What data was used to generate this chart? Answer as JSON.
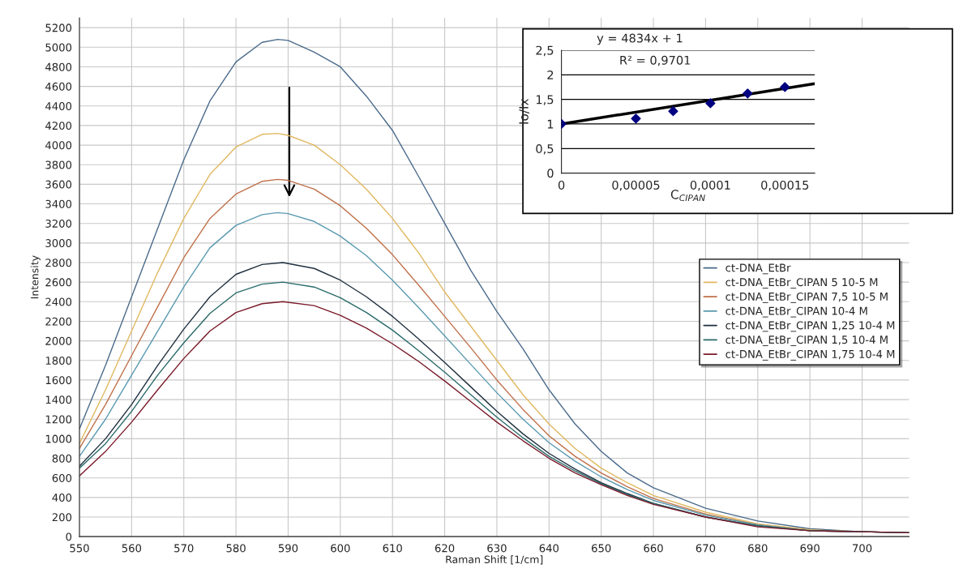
{
  "chart_data": [
    {
      "type": "line",
      "xlabel": "Raman Shift [1/cm]",
      "ylabel": "Intensity",
      "xlim": [
        550,
        709
      ],
      "xticks": [
        550,
        560,
        570,
        580,
        590,
        600,
        610,
        620,
        630,
        640,
        650,
        660,
        670,
        680,
        690,
        700
      ],
      "ylim": [
        0,
        5300
      ],
      "yticks": [
        0,
        200,
        400,
        600,
        800,
        1000,
        1200,
        1400,
        1600,
        1800,
        2000,
        2200,
        2400,
        2600,
        2800,
        3000,
        3200,
        3400,
        3600,
        3800,
        4000,
        4200,
        4400,
        4600,
        4800,
        5000,
        5200
      ],
      "grid": true,
      "legend": "right",
      "line_style": "solid",
      "series": [
        {
          "name": "ct-DNA_EtBr",
          "color": "#4a6a8a",
          "x": [
            550,
            555,
            560,
            565,
            570,
            575,
            580,
            585,
            588,
            590,
            595,
            600,
            605,
            610,
            615,
            620,
            625,
            630,
            635,
            640,
            645,
            650,
            655,
            660,
            670,
            680,
            690,
            700,
            709
          ],
          "values": [
            1100,
            1750,
            2450,
            3150,
            3850,
            4450,
            4850,
            5050,
            5080,
            5070,
            4950,
            4800,
            4500,
            4150,
            3680,
            3200,
            2720,
            2300,
            1920,
            1500,
            1150,
            870,
            650,
            500,
            290,
            160,
            80,
            50,
            40
          ]
        },
        {
          "name": "ct-DNA_EtBr_CIPAN 5 10-5 M",
          "color": "#e0b860",
          "x": [
            550,
            555,
            560,
            565,
            570,
            575,
            580,
            585,
            588,
            590,
            595,
            600,
            605,
            610,
            615,
            620,
            625,
            630,
            635,
            640,
            645,
            650,
            655,
            660,
            670,
            680,
            690,
            700,
            709
          ],
          "values": [
            950,
            1500,
            2100,
            2700,
            3250,
            3700,
            3980,
            4110,
            4120,
            4100,
            4000,
            3800,
            3550,
            3250,
            2900,
            2500,
            2150,
            1800,
            1450,
            1150,
            900,
            700,
            550,
            420,
            250,
            130,
            70,
            50,
            40
          ]
        },
        {
          "name": "ct-DNA_EtBr_CIPAN 7,5 10-5 M",
          "color": "#c0704a",
          "x": [
            550,
            555,
            560,
            565,
            570,
            575,
            580,
            585,
            588,
            590,
            595,
            600,
            605,
            610,
            615,
            620,
            625,
            630,
            635,
            640,
            645,
            650,
            655,
            660,
            670,
            680,
            690,
            700,
            709
          ],
          "values": [
            900,
            1350,
            1850,
            2350,
            2850,
            3250,
            3500,
            3630,
            3650,
            3640,
            3550,
            3380,
            3150,
            2880,
            2570,
            2250,
            1930,
            1600,
            1300,
            1030,
            820,
            650,
            510,
            390,
            230,
            120,
            60,
            50,
            40
          ]
        },
        {
          "name": "ct-DNA_EtBr_CIPAN 10-4 M",
          "color": "#5a9ab0",
          "x": [
            550,
            555,
            560,
            565,
            570,
            575,
            580,
            585,
            588,
            590,
            595,
            600,
            605,
            610,
            615,
            620,
            625,
            630,
            635,
            640,
            645,
            650,
            655,
            660,
            670,
            680,
            690,
            700,
            709
          ],
          "values": [
            820,
            1200,
            1650,
            2100,
            2550,
            2950,
            3180,
            3290,
            3310,
            3300,
            3220,
            3070,
            2870,
            2620,
            2340,
            2050,
            1760,
            1470,
            1200,
            960,
            770,
            610,
            480,
            370,
            220,
            120,
            60,
            50,
            40
          ]
        },
        {
          "name": "ct-DNA_EtBr_CIPAN 1,25 10-4 M",
          "color": "#1f2f3f",
          "x": [
            550,
            555,
            560,
            565,
            570,
            575,
            580,
            585,
            589,
            595,
            600,
            605,
            610,
            615,
            620,
            625,
            630,
            635,
            640,
            645,
            650,
            655,
            660,
            670,
            680,
            690,
            700,
            709
          ],
          "values": [
            720,
            1000,
            1350,
            1750,
            2120,
            2450,
            2680,
            2780,
            2800,
            2740,
            2620,
            2450,
            2250,
            2020,
            1780,
            1530,
            1280,
            1050,
            850,
            690,
            550,
            440,
            340,
            200,
            110,
            60,
            50,
            40
          ]
        },
        {
          "name": "ct-DNA_EtBr_CIPAN 1,5 10-4 M",
          "color": "#2a6a6a",
          "x": [
            550,
            555,
            560,
            565,
            570,
            575,
            580,
            585,
            589,
            595,
            600,
            605,
            610,
            615,
            620,
            625,
            630,
            635,
            640,
            645,
            650,
            655,
            660,
            670,
            680,
            690,
            700,
            709
          ],
          "values": [
            700,
            950,
            1280,
            1650,
            1980,
            2280,
            2490,
            2580,
            2600,
            2550,
            2440,
            2290,
            2110,
            1900,
            1680,
            1450,
            1220,
            1010,
            820,
            670,
            540,
            430,
            340,
            200,
            110,
            60,
            50,
            40
          ]
        },
        {
          "name": "ct-DNA_EtBr_CIPAN 1,75 10-4 M",
          "color": "#7a1a2a",
          "x": [
            550,
            555,
            560,
            565,
            570,
            575,
            580,
            585,
            589,
            595,
            600,
            605,
            610,
            615,
            620,
            625,
            630,
            635,
            640,
            645,
            650,
            655,
            660,
            670,
            680,
            690,
            700,
            709
          ],
          "values": [
            620,
            870,
            1170,
            1500,
            1820,
            2100,
            2290,
            2380,
            2400,
            2360,
            2260,
            2130,
            1970,
            1790,
            1590,
            1380,
            1170,
            980,
            800,
            650,
            530,
            420,
            330,
            200,
            100,
            60,
            50,
            40
          ]
        }
      ]
    },
    {
      "type": "scatter",
      "xlabel": "C$_{CIPAN}$",
      "ylabel": "Io/Ix",
      "xlim": [
        0,
        0.00017
      ],
      "xticks": [
        0,
        {
          "value": 5e-05,
          "label": "0,00005"
        },
        {
          "value": 0.0001,
          "label": "0,0001"
        },
        {
          "value": 0.00015,
          "label": "0,00015"
        }
      ],
      "ylim": [
        0,
        2.5
      ],
      "yticks": [
        0,
        {
          "value": 0.5,
          "label": "0,5"
        },
        1,
        {
          "value": 1.5,
          "label": "1,5"
        },
        2,
        {
          "value": 2.5,
          "label": "2,5"
        }
      ],
      "grid": "y",
      "annotations": [
        "y = 4834x + 1",
        "R² = 0,9701"
      ],
      "series": [
        {
          "color": "#000080",
          "marker": "diamond",
          "x": [
            0,
            5e-05,
            7.5e-05,
            0.0001,
            0.000125,
            0.00015
          ],
          "values": [
            1,
            1.11,
            1.26,
            1.42,
            1.62,
            1.75
          ]
        },
        {
          "type": "line",
          "color": "#000000",
          "x": [
            0,
            0.00017
          ],
          "values": [
            1,
            1.82
          ]
        }
      ]
    }
  ]
}
